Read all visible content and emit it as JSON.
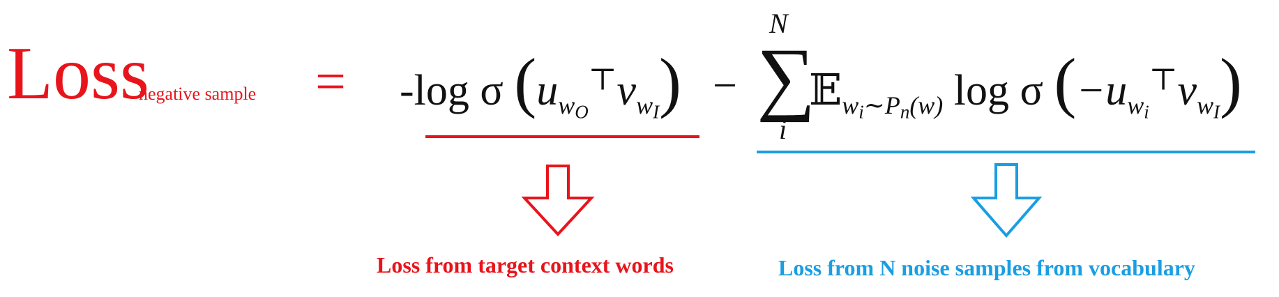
{
  "formula": {
    "loss_word": "Loss",
    "loss_subscript": "negative sample",
    "equals": "=",
    "term1_prefix": "-log σ",
    "term1_u": "u",
    "term1_u_sub": "w",
    "term1_u_subsub": "O",
    "transpose": "⊤",
    "term1_v": "v",
    "term1_v_sub": "w",
    "term1_v_subsub": "I",
    "minus": "−",
    "sum_symbol": "∑",
    "sum_upper": "N",
    "sum_lower": "i",
    "expectation": "𝔼",
    "expectation_sub": "w",
    "expectation_subsub_i": "i",
    "expectation_dist": "∼P",
    "expectation_dist_sub": "n",
    "expectation_dist_arg": "(w)",
    "term2_prefix": "log σ",
    "term2_neg": "−u",
    "term2_u_sub": "w",
    "term2_u_subsub": "i",
    "term2_v": "v",
    "term2_v_sub": "w",
    "term2_v_subsub": "I"
  },
  "annotations": {
    "left_label": "Loss from target context words",
    "right_label": "Loss from N noise samples from vocabulary",
    "left_color": "#e8141c",
    "right_color": "#1a9ee2"
  }
}
